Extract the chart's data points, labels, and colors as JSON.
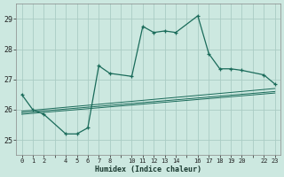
{
  "xlabel": "Humidex (Indice chaleur)",
  "bg_color": "#cce8e0",
  "grid_color": "#aaccC4",
  "line_color": "#1a6b5a",
  "xlim": [
    -0.5,
    23.5
  ],
  "ylim": [
    24.5,
    29.5
  ],
  "xtick_positions": [
    0,
    1,
    2,
    3,
    4,
    5,
    6,
    7,
    8,
    9,
    10,
    11,
    12,
    13,
    14,
    15,
    16,
    17,
    18,
    19,
    20,
    21,
    22,
    23
  ],
  "xtick_labels": [
    "0",
    "1",
    "2",
    "",
    "4",
    "5",
    "6",
    "7",
    "8",
    "",
    "10",
    "11",
    "12",
    "13",
    "14",
    "",
    "16",
    "17",
    "18",
    "19",
    "20",
    "",
    "22",
    "23"
  ],
  "yticks": [
    25,
    26,
    27,
    28,
    29
  ],
  "main_series": {
    "x": [
      0,
      1,
      2,
      4,
      5,
      6,
      7,
      8,
      10,
      11,
      12,
      13,
      14,
      16,
      17,
      18,
      19,
      20,
      22,
      23
    ],
    "y": [
      26.5,
      26.0,
      25.85,
      25.2,
      25.2,
      25.4,
      27.45,
      27.2,
      27.1,
      28.75,
      28.55,
      28.6,
      28.55,
      29.1,
      27.85,
      27.35,
      27.35,
      27.3,
      27.15,
      26.85
    ]
  },
  "trend_lines": [
    {
      "x": [
        0,
        23
      ],
      "y": [
        25.85,
        26.55
      ]
    },
    {
      "x": [
        0,
        23
      ],
      "y": [
        25.9,
        26.6
      ]
    },
    {
      "x": [
        0,
        23
      ],
      "y": [
        25.95,
        26.7
      ]
    }
  ]
}
